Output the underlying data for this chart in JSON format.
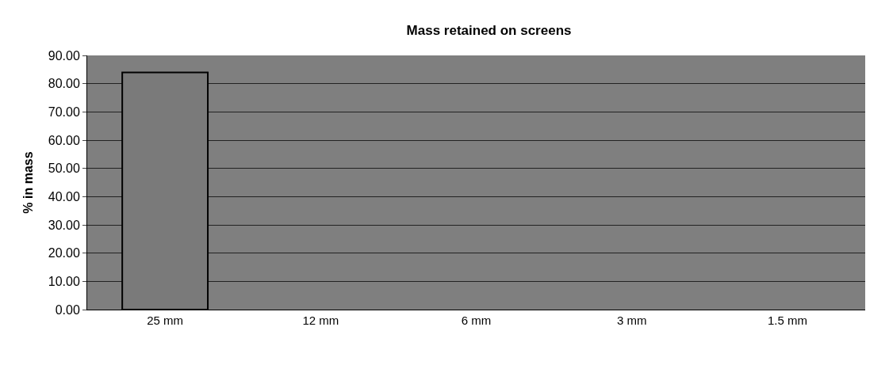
{
  "chart_data": {
    "type": "bar",
    "title": "Mass retained on screens",
    "ylabel": "% in mass",
    "categories": [
      "25 mm",
      "12 mm",
      "6 mm",
      "3 mm",
      "1.5 mm"
    ],
    "values": [
      84,
      0,
      0,
      0,
      0
    ],
    "color": "#7a7a7a",
    "ylim": [
      0,
      90
    ],
    "yticks": [
      {
        "value": 0,
        "label": "0.00"
      },
      {
        "value": 10,
        "label": "10.00"
      },
      {
        "value": 20,
        "label": "20.00"
      },
      {
        "value": 30,
        "label": "30.00"
      },
      {
        "value": 40,
        "label": "40.00"
      },
      {
        "value": 50,
        "label": "50.00"
      },
      {
        "value": 60,
        "label": "60.00"
      },
      {
        "value": 70,
        "label": "70.00"
      },
      {
        "value": 80,
        "label": "80.00"
      },
      {
        "value": 90,
        "label": "90.00"
      }
    ],
    "grid": "y",
    "legend": false
  }
}
